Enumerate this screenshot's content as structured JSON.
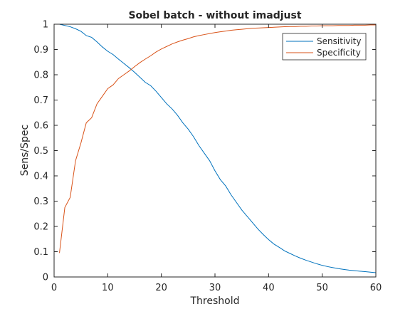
{
  "chart_data": {
    "type": "line",
    "title": "Sobel batch - without imadjust",
    "xlabel": "Threshold",
    "ylabel": "Sens/Spec",
    "xlim": [
      0,
      60
    ],
    "ylim": [
      0,
      1
    ],
    "xticks": [
      0,
      10,
      20,
      30,
      40,
      50,
      60
    ],
    "yticks": [
      0,
      0.1,
      0.2,
      0.3,
      0.4,
      0.5,
      0.6,
      0.7,
      0.8,
      0.9,
      1
    ],
    "xtick_labels": [
      "0",
      "10",
      "20",
      "30",
      "40",
      "50",
      "60"
    ],
    "ytick_labels": [
      "0",
      "0.1",
      "0.2",
      "0.3",
      "0.4",
      "0.5",
      "0.6",
      "0.7",
      "0.8",
      "0.9",
      "1"
    ],
    "grid": false,
    "legend_position": "top-right",
    "series": [
      {
        "name": "Sensitivity",
        "color": "#0072bd",
        "x": [
          1,
          2,
          3,
          4,
          5,
          6,
          7,
          8,
          9,
          10,
          11,
          12,
          13,
          14,
          15,
          16,
          17,
          18,
          19,
          20,
          21,
          22,
          23,
          24,
          25,
          26,
          27,
          28,
          29,
          30,
          31,
          32,
          33,
          34,
          35,
          36,
          37,
          38,
          39,
          40,
          41,
          42,
          43,
          44,
          45,
          46,
          47,
          48,
          49,
          50,
          51,
          52,
          53,
          54,
          55,
          56,
          57,
          58,
          59,
          60
        ],
        "y": [
          1.0,
          0.995,
          0.99,
          0.982,
          0.972,
          0.955,
          0.948,
          0.93,
          0.91,
          0.893,
          0.88,
          0.862,
          0.845,
          0.828,
          0.81,
          0.79,
          0.77,
          0.757,
          0.735,
          0.71,
          0.685,
          0.665,
          0.64,
          0.61,
          0.585,
          0.555,
          0.52,
          0.49,
          0.46,
          0.42,
          0.385,
          0.36,
          0.325,
          0.295,
          0.265,
          0.24,
          0.215,
          0.19,
          0.168,
          0.148,
          0.13,
          0.117,
          0.103,
          0.093,
          0.083,
          0.074,
          0.066,
          0.059,
          0.052,
          0.046,
          0.041,
          0.037,
          0.033,
          0.03,
          0.027,
          0.025,
          0.023,
          0.021,
          0.019,
          0.017
        ]
      },
      {
        "name": "Specificity",
        "color": "#d95319",
        "x": [
          1,
          2,
          3,
          4,
          5,
          6,
          7,
          8,
          9,
          10,
          11,
          12,
          13,
          14,
          15,
          16,
          17,
          18,
          19,
          20,
          21,
          22,
          23,
          24,
          25,
          26,
          27,
          28,
          29,
          30,
          31,
          32,
          33,
          34,
          35,
          36,
          37,
          38,
          39,
          40,
          41,
          42,
          43,
          44,
          45,
          46,
          47,
          48,
          49,
          50,
          51,
          52,
          53,
          54,
          55,
          56,
          57,
          58,
          59,
          60
        ],
        "y": [
          0.095,
          0.275,
          0.315,
          0.46,
          0.53,
          0.61,
          0.63,
          0.685,
          0.715,
          0.745,
          0.76,
          0.785,
          0.8,
          0.815,
          0.832,
          0.848,
          0.862,
          0.875,
          0.89,
          0.902,
          0.912,
          0.922,
          0.93,
          0.937,
          0.943,
          0.95,
          0.955,
          0.959,
          0.963,
          0.967,
          0.97,
          0.973,
          0.976,
          0.978,
          0.98,
          0.982,
          0.984,
          0.985,
          0.986,
          0.987,
          0.988,
          0.989,
          0.99,
          0.991,
          0.991,
          0.992,
          0.992,
          0.993,
          0.993,
          0.994,
          0.994,
          0.994,
          0.995,
          0.995,
          0.995,
          0.996,
          0.996,
          0.996,
          0.997,
          0.997
        ]
      }
    ]
  }
}
